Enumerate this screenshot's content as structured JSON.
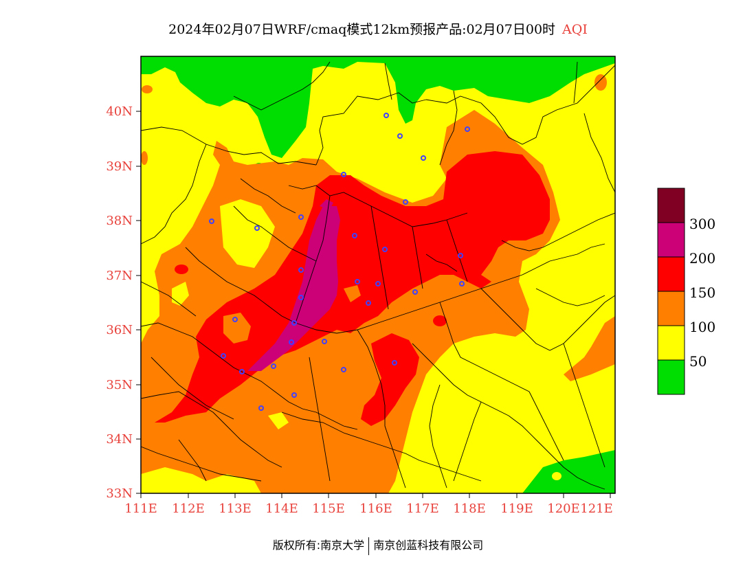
{
  "title": {
    "main": "2024年02月07日WRF/cmaq模式12km预报产品:02月07日00时",
    "variable": "AQI"
  },
  "map": {
    "lon_range": [
      111,
      121.5
    ],
    "lat_range": [
      33,
      41
    ],
    "x_ticks": [
      "111E",
      "112E",
      "113E",
      "114E",
      "115E",
      "116E",
      "117E",
      "118E",
      "119E",
      "120E",
      "121E"
    ],
    "y_ticks": [
      "33N",
      "34N",
      "35N",
      "36N",
      "37N",
      "38N",
      "39N",
      "40N"
    ],
    "colors": {
      "green": "#00dd00",
      "yellow": "#ffff00",
      "orange": "#ff7f00",
      "red": "#ff0000",
      "magenta": "#cc0077",
      "maroon": "#7f0022",
      "station": "#4040ff",
      "border": "#000000"
    }
  },
  "legend": {
    "labels": [
      "50",
      "100",
      "150",
      "200",
      "300"
    ],
    "colors": [
      "#00dd00",
      "#ffff00",
      "#ff7f00",
      "#ff0000",
      "#cc0077",
      "#7f0022"
    ]
  },
  "footer": {
    "left": "版权所有:南京大学",
    "right": "南京创蓝科技有限公司"
  }
}
